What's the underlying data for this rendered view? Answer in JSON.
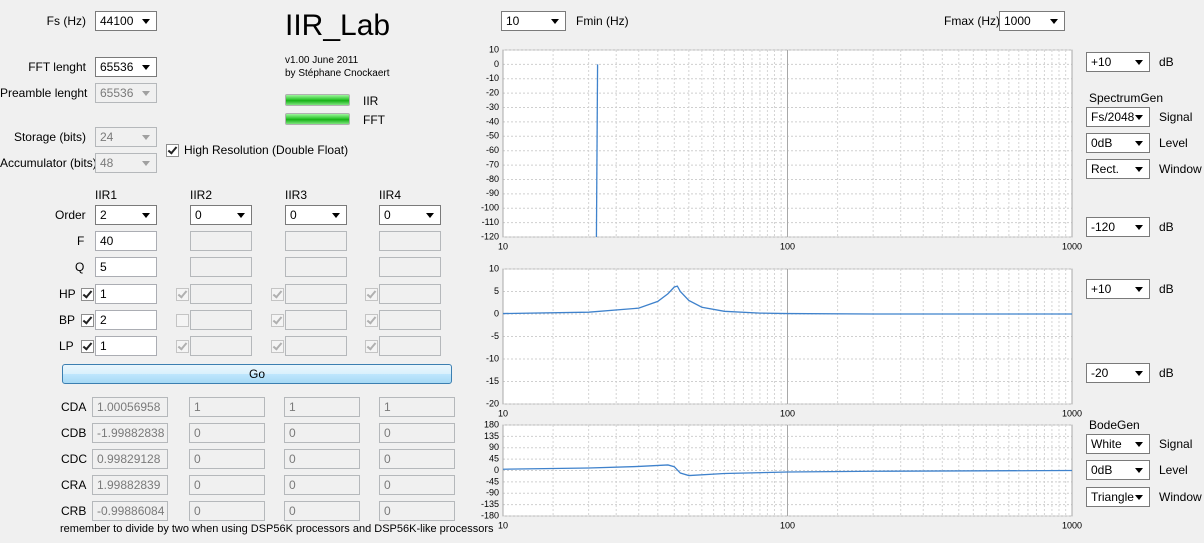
{
  "header": {
    "title": "IIR_Lab",
    "version": "v1.00 June 2011",
    "author": "by Stéphane Cnockaert",
    "indicators": [
      "IIR",
      "FFT"
    ]
  },
  "settings": [
    {
      "label": "Fs (Hz)",
      "value": "44100",
      "enabled": true
    },
    {
      "label": "FFT lenght",
      "value": "65536",
      "enabled": true
    },
    {
      "label": "Preamble lenght",
      "value": "65536",
      "enabled": false
    },
    {
      "label": "Storage (bits)",
      "value": "24",
      "enabled": false
    },
    {
      "label": "Accumulator (bits)",
      "value": "48",
      "enabled": false
    }
  ],
  "high_resolution": {
    "label": "High Resolution (Double Float)",
    "checked": true
  },
  "filters": {
    "headers": [
      "IIR1",
      "IIR2",
      "IIR3",
      "IIR4"
    ],
    "order": {
      "label": "Order",
      "values": [
        "2",
        "0",
        "0",
        "0"
      ]
    },
    "f": {
      "label": "F",
      "value": "40"
    },
    "q": {
      "label": "Q",
      "value": "5"
    },
    "hp": {
      "label": "HP",
      "value": "1",
      "checks": [
        true,
        true,
        true,
        true
      ]
    },
    "bp": {
      "label": "BP",
      "value": "2",
      "checks": [
        true,
        false,
        true,
        true
      ]
    },
    "lp": {
      "label": "LP",
      "value": "1",
      "checks": [
        true,
        true,
        true,
        true
      ]
    }
  },
  "go_button": "Go",
  "coefficients": [
    {
      "label": "CDA",
      "values": [
        "1.00056958",
        "1",
        "1",
        "1"
      ]
    },
    {
      "label": "CDB",
      "values": [
        "-1.99882838",
        "0",
        "0",
        "0"
      ]
    },
    {
      "label": "CDC",
      "values": [
        "0.99829128",
        "0",
        "0",
        "0"
      ]
    },
    {
      "label": "CRA",
      "values": [
        "1.99882839",
        "0",
        "0",
        "0"
      ]
    },
    {
      "label": "CRB",
      "values": [
        "-0.99886084",
        "0",
        "0",
        "0"
      ]
    }
  ],
  "note": "remember to divide by two when using DSP56K processors and DSP56K-like processors",
  "range": {
    "fmin": {
      "label": "Fmin (Hz)",
      "value": "10"
    },
    "fmax": {
      "label": "Fmax (Hz)",
      "value": "1000"
    }
  },
  "spectrum_controls": {
    "title": "SpectrumGen",
    "top": {
      "value": "+10",
      "unit": "dB"
    },
    "signal": {
      "value": "Fs/2048",
      "label": "Signal"
    },
    "level": {
      "value": "0dB",
      "label": "Level"
    },
    "window": {
      "value": "Rect.",
      "label": "Window"
    },
    "bottom": {
      "value": "-120",
      "unit": "dB"
    }
  },
  "bode_mag_controls": {
    "top": {
      "value": "+10",
      "unit": "dB"
    },
    "bottom": {
      "value": "-20",
      "unit": "dB"
    }
  },
  "bode_controls": {
    "title": "BodeGen",
    "signal": {
      "value": "White",
      "label": "Signal"
    },
    "level": {
      "value": "0dB",
      "label": "Level"
    },
    "window": {
      "value": "Triangle",
      "label": "Window"
    }
  },
  "chart_data": [
    {
      "type": "line",
      "log_x": true,
      "grid": true,
      "color": "#3f82cc",
      "xlim": [
        10,
        1000
      ],
      "xticks": [
        10,
        100,
        1000
      ],
      "ylim": [
        -120,
        10
      ],
      "yticks": [
        10,
        0,
        -10,
        -20,
        -30,
        -40,
        -50,
        -60,
        -70,
        -80,
        -90,
        -100,
        -110,
        -120
      ],
      "x": [
        21.3,
        21.5
      ],
      "values": [
        -120,
        0
      ]
    },
    {
      "type": "line",
      "log_x": true,
      "grid": true,
      "color": "#3f82cc",
      "xlim": [
        10,
        1000
      ],
      "xticks": [
        10,
        100,
        1000
      ],
      "ylim": [
        -20,
        10
      ],
      "yticks": [
        10,
        5,
        0,
        -5,
        -10,
        -15,
        -20
      ],
      "x": [
        10,
        20,
        30,
        35,
        38,
        40,
        41,
        42,
        45,
        50,
        60,
        80,
        100,
        200,
        1000
      ],
      "values": [
        0.1,
        0.4,
        1.3,
        2.8,
        4.5,
        6,
        6.2,
        5,
        3,
        1.5,
        0.6,
        0.2,
        0.1,
        0,
        0
      ]
    },
    {
      "type": "line",
      "log_x": true,
      "grid": true,
      "color": "#3f82cc",
      "xlim": [
        10,
        1000
      ],
      "xticks": [
        10,
        100,
        1000
      ],
      "ylim": [
        -180,
        180
      ],
      "yticks": [
        180,
        135,
        90,
        45,
        0,
        -45,
        -90,
        -135,
        -180
      ],
      "x": [
        10,
        20,
        30,
        38,
        40,
        42,
        45,
        60,
        100,
        200,
        1000
      ],
      "values": [
        5,
        10,
        16,
        22,
        15,
        -10,
        -20,
        -12,
        -6,
        -3,
        0
      ]
    }
  ]
}
